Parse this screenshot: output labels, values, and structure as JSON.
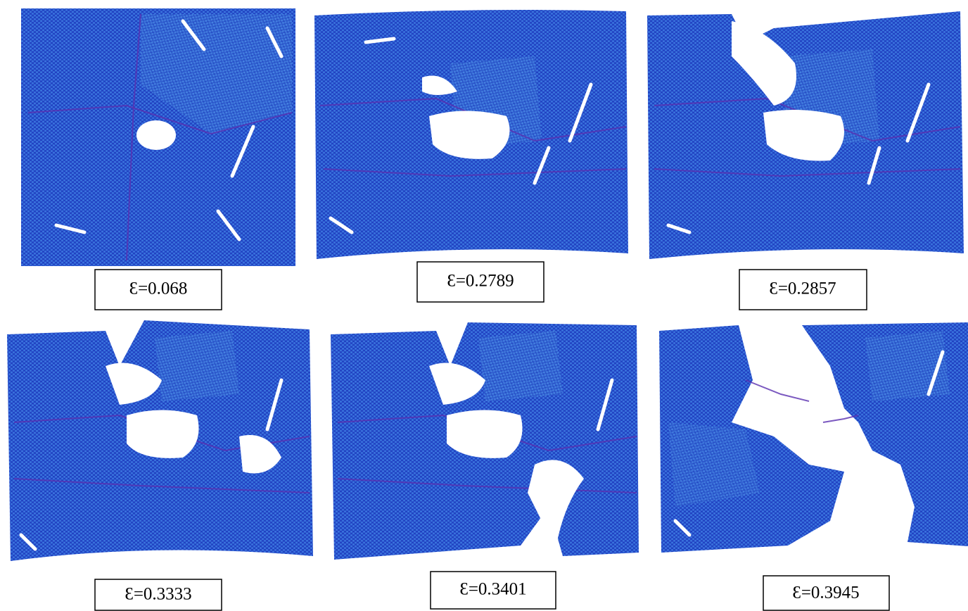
{
  "panels": [
    {
      "label": "Ɛ=0.068"
    },
    {
      "label": "Ɛ=0.2789"
    },
    {
      "label": "Ɛ=0.2857"
    },
    {
      "label": "Ɛ=0.3333"
    },
    {
      "label": "Ɛ=0.3401"
    },
    {
      "label": "Ɛ=0.3945"
    }
  ]
}
